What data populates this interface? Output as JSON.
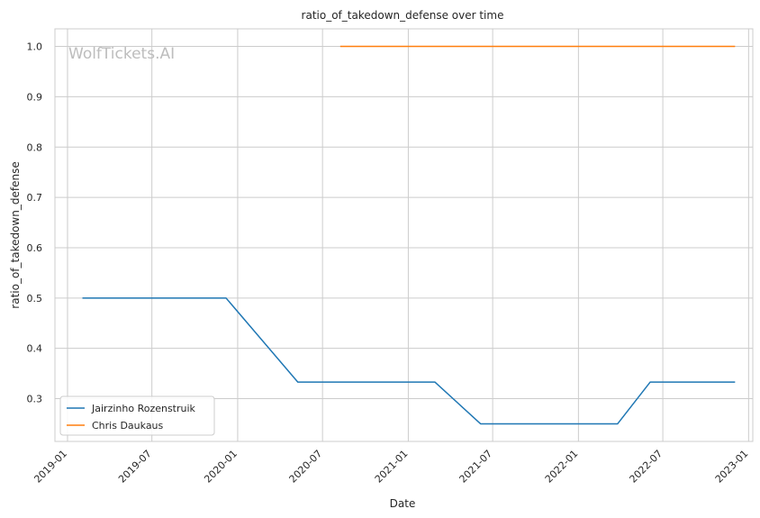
{
  "chart_data": {
    "type": "line",
    "title": "ratio_of_takedown_defense over time",
    "xlabel": "Date",
    "ylabel": "ratio_of_takedown_defense",
    "watermark": "WolfTickets.AI",
    "xlim": [
      "2018-12-05",
      "2023-01-10"
    ],
    "ylim": [
      0.215,
      1.035
    ],
    "x_ticks": [
      "2019-01",
      "2019-07",
      "2020-01",
      "2020-07",
      "2021-01",
      "2021-07",
      "2022-01",
      "2022-07",
      "2023-01"
    ],
    "y_ticks": [
      0.3,
      0.4,
      0.5,
      0.6,
      0.7,
      0.8,
      0.9,
      1.0
    ],
    "y_tick_labels": [
      "0.3",
      "0.4",
      "0.5",
      "0.6",
      "0.7",
      "0.8",
      "0.9",
      "1.0"
    ],
    "grid": true,
    "legend_position": "lower-left",
    "series": [
      {
        "name": "Jairzinho Rozenstruik",
        "color": "#1f77b4",
        "x": [
          "2019-02-02",
          "2019-12-07",
          "2020-05-09",
          "2021-02-27",
          "2021-06-05",
          "2022-03-26",
          "2022-06-04",
          "2022-12-03"
        ],
        "y": [
          0.5,
          0.5,
          0.333,
          0.333,
          0.25,
          0.25,
          0.333,
          0.333
        ]
      },
      {
        "name": "Chris Daukaus",
        "color": "#ff7f0e",
        "x": [
          "2020-08-08",
          "2022-12-03"
        ],
        "y": [
          1.0,
          1.0
        ]
      }
    ]
  }
}
